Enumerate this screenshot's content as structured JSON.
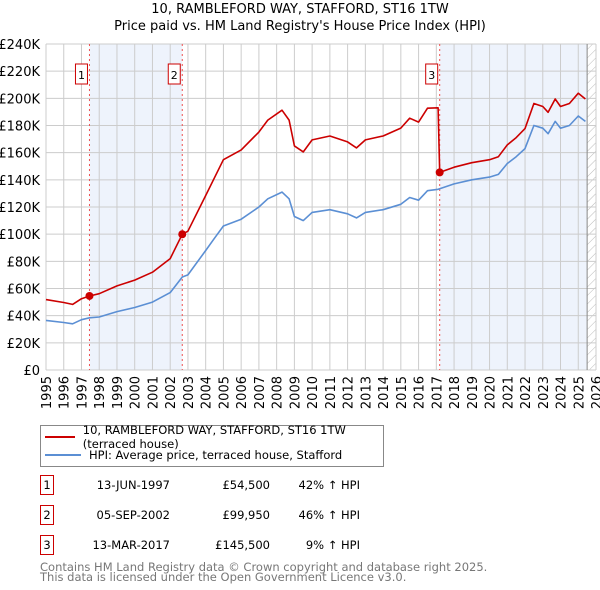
{
  "chart_data": {
    "type": "line",
    "title": "10, RAMBLEFORD WAY, STAFFORD, ST16 1TW",
    "subtitle": "Price paid vs. HM Land Registry's House Price Index (HPI)",
    "xlim": [
      1995,
      2026
    ],
    "ylim": [
      0,
      240
    ],
    "y_unit": "£K",
    "y_ticks": [
      "£0",
      "£20K",
      "£40K",
      "£60K",
      "£80K",
      "£100K",
      "£120K",
      "£140K",
      "£160K",
      "£180K",
      "£200K",
      "£220K",
      "£240K"
    ],
    "x_ticks": [
      "1995",
      "1996",
      "1997",
      "1998",
      "1999",
      "2000",
      "2001",
      "2002",
      "2003",
      "2004",
      "2005",
      "2006",
      "2007",
      "2008",
      "2009",
      "2010",
      "2011",
      "2012",
      "2013",
      "2014",
      "2015",
      "2016",
      "2017",
      "2018",
      "2019",
      "2020",
      "2021",
      "2022",
      "2023",
      "2024",
      "2025",
      "2026"
    ],
    "grid": true,
    "x": [
      1995,
      1996,
      1996.5,
      1997,
      1997.45,
      1998,
      1999,
      2000,
      2001,
      2002,
      2002.68,
      2003,
      2004,
      2004.5,
      2005,
      2006,
      2007,
      2007.5,
      2008.3,
      2008.7,
      2009,
      2009.5,
      2010,
      2011,
      2012,
      2012.5,
      2013,
      2014,
      2015,
      2015.5,
      2016,
      2016.5,
      2017.1,
      2017.19,
      2018,
      2019,
      2020,
      2020.5,
      2021,
      2021.5,
      2022,
      2022.5,
      2023,
      2023.3,
      2023.7,
      2024,
      2024.5,
      2025,
      2025.4
    ],
    "series": [
      {
        "name": "10, RAMBLEFORD WAY, STAFFORD, ST16 1TW (terraced house)",
        "color": "#cc0000",
        "values": [
          51.8,
          49.7,
          48.3,
          52.5,
          54.5,
          56.2,
          61.9,
          66.2,
          72,
          82,
          99.95,
          102.2,
          128.5,
          141.6,
          154.8,
          162,
          175.2,
          184,
          191.3,
          184,
          165,
          160.6,
          169.4,
          172.3,
          167.9,
          163.5,
          169.4,
          172.3,
          178.1,
          185.4,
          182.5,
          192.7,
          193,
          145.5,
          149.3,
          152.6,
          154.8,
          157,
          165.7,
          171.1,
          177.7,
          196.2,
          194,
          189.7,
          199.5,
          194,
          196.2,
          203.8,
          199.5
        ]
      },
      {
        "name": "HPI: Average price, terraced house, Stafford",
        "color": "#5b8fd4",
        "values": [
          36.5,
          35,
          34,
          37,
          38.4,
          39,
          43,
          46,
          50,
          57,
          68.5,
          70,
          88,
          97,
          106,
          111,
          120,
          126,
          131,
          126,
          113,
          110,
          116,
          118,
          115,
          112,
          116,
          118,
          122,
          127,
          125,
          132,
          133,
          133.5,
          137,
          140,
          142,
          144,
          152,
          157,
          163,
          180,
          178,
          174,
          183,
          178,
          180,
          187,
          183
        ]
      }
    ],
    "sales": [
      {
        "label": "1",
        "x": 1997.45,
        "y": 54.5,
        "date": "13-JUN-1997",
        "price": "£54,500",
        "hpi": "42% ↑ HPI"
      },
      {
        "label": "2",
        "x": 2002.68,
        "y": 99.95,
        "date": "05-SEP-2002",
        "price": "£99,950",
        "hpi": "46% ↑ HPI"
      },
      {
        "label": "3",
        "x": 2017.19,
        "y": 145.5,
        "date": "13-MAR-2017",
        "price": "£145,500",
        "hpi": "9% ↑ HPI"
      }
    ],
    "shaded_ranges": [
      [
        1997.45,
        2002.68
      ],
      [
        2017.19,
        2025.5
      ]
    ],
    "forecast_hatch_from": 2025.5,
    "legend_placement": "below"
  },
  "footer": [
    "Contains HM Land Registry data © Crown copyright and database right 2025.",
    "This data is licensed under the Open Government Licence v3.0."
  ]
}
